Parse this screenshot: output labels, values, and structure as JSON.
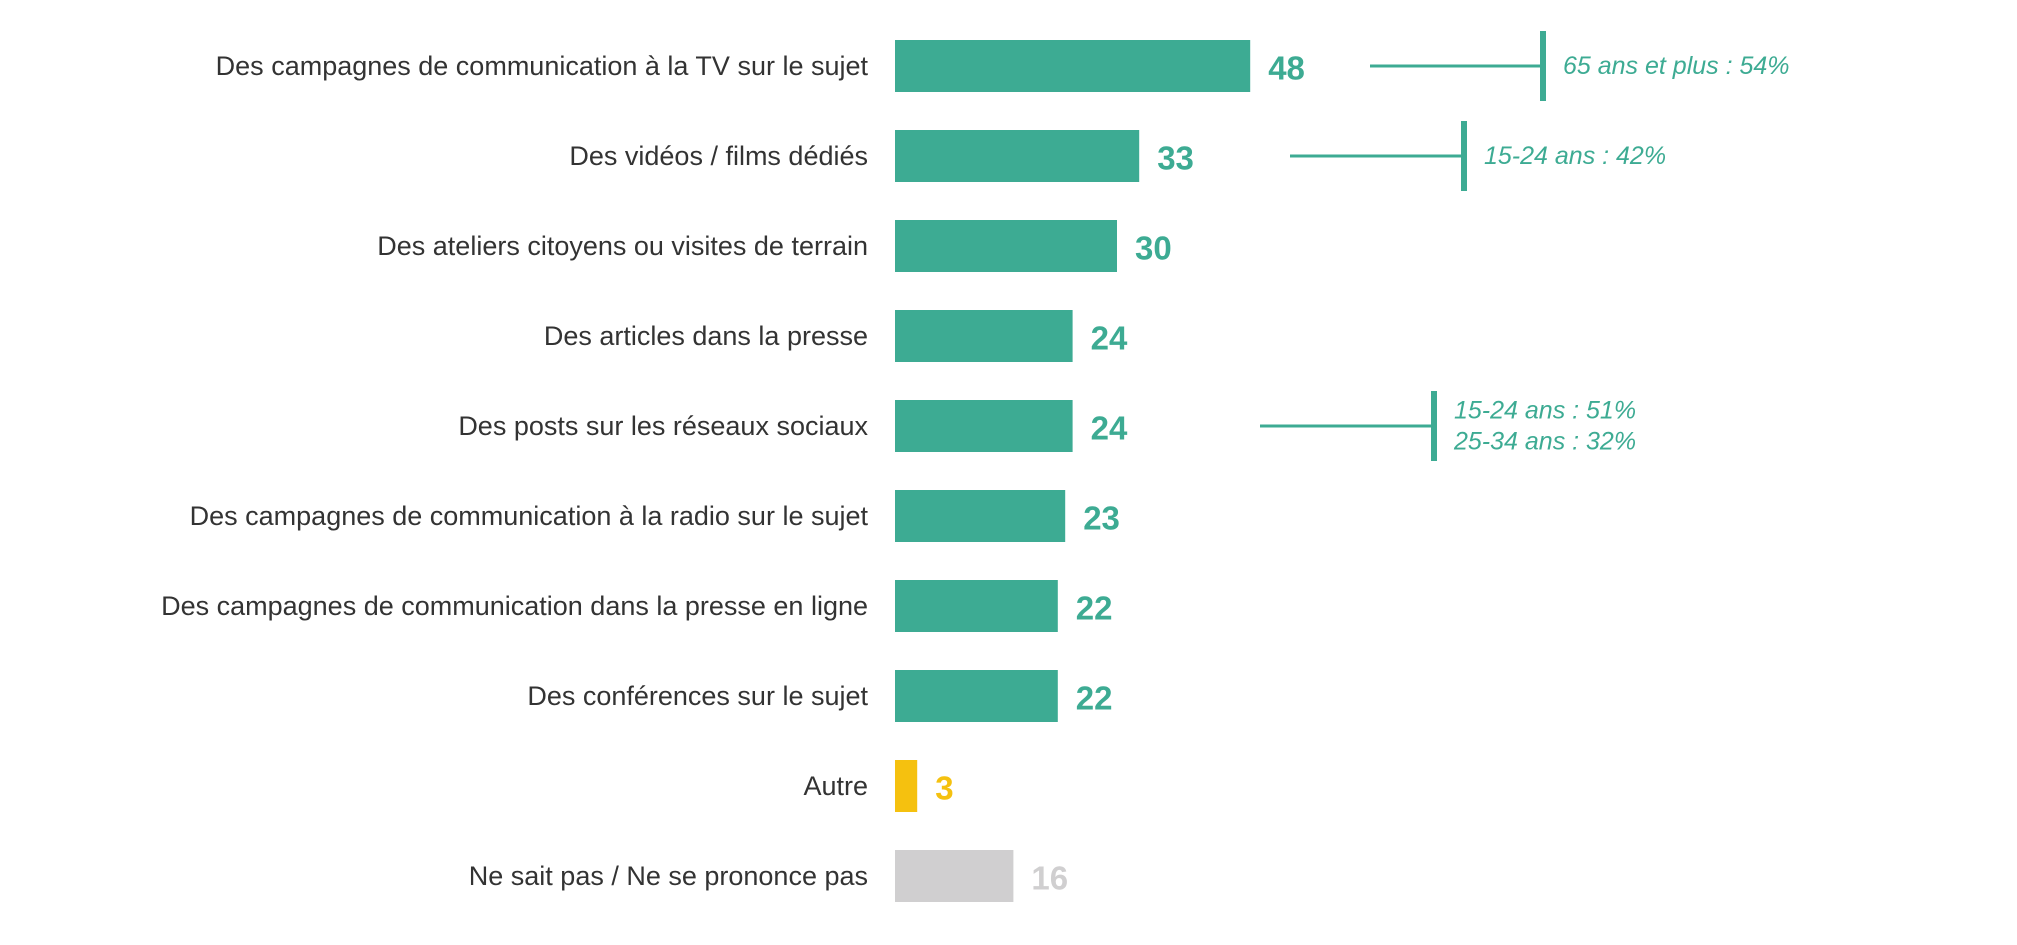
{
  "colors": {
    "primary": "#3dab93",
    "other": "#f5c10f",
    "dont_know": "#d0cfd0",
    "label": "#333333"
  },
  "chart_data": {
    "type": "bar",
    "orientation": "horizontal",
    "title": "",
    "xlabel": "",
    "ylabel": "",
    "xlim": [
      0,
      48
    ],
    "grid": false,
    "legend": "none",
    "categories": [
      "Des campagnes de communication à la TV sur le sujet",
      "Des vidéos / films dédiés",
      "Des ateliers citoyens ou visites de terrain",
      "Des articles dans la presse",
      "Des posts sur les réseaux sociaux",
      "Des campagnes de communication à la radio sur le sujet",
      "Des campagnes de communication dans la presse en ligne",
      "Des conférences sur le sujet",
      "Autre",
      "Ne sait pas / Ne se prononce pas"
    ],
    "values": [
      48,
      33,
      30,
      24,
      24,
      23,
      22,
      22,
      3,
      16
    ],
    "bar_colors": [
      "primary",
      "primary",
      "primary",
      "primary",
      "primary",
      "primary",
      "primary",
      "primary",
      "other",
      "dont_know"
    ],
    "annotations": [
      {
        "category_index": 0,
        "lines": [
          "65 ans et plus : 54%"
        ]
      },
      {
        "category_index": 1,
        "lines": [
          "15-24 ans : 42%"
        ]
      },
      {
        "category_index": 4,
        "lines": [
          "15-24 ans : 51%",
          "25-34 ans : 32%"
        ]
      }
    ]
  }
}
